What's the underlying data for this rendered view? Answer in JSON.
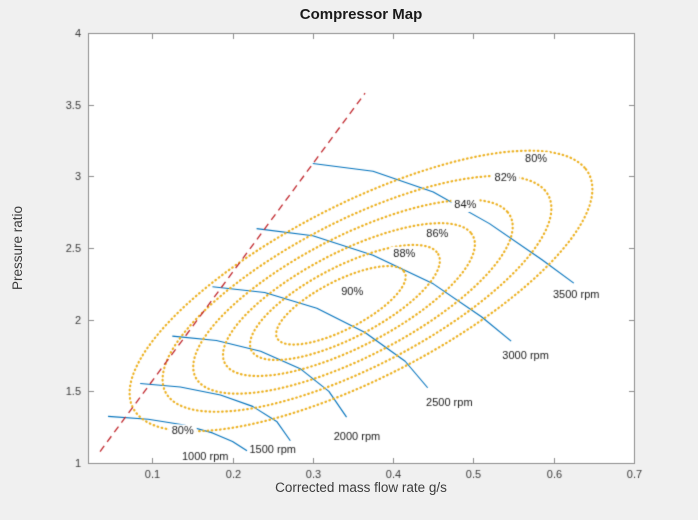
{
  "figure": {
    "title": "Compressor Map",
    "xlabel": "Corrected mass flow rate g/s",
    "ylabel": "Pressure ratio"
  },
  "chart_data": {
    "type": "line",
    "title": "Compressor Map",
    "xlabel": "Corrected mass flow rate g/s",
    "ylabel": "Pressure ratio",
    "xlim": [
      0.02,
      0.7
    ],
    "ylim": [
      1,
      4
    ],
    "xticks": [
      0.1,
      0.2,
      0.3,
      0.4,
      0.5,
      0.6,
      0.7
    ],
    "xtick_labels": [
      "0.1",
      "0.2",
      "0.3",
      "0.4",
      "0.5",
      "0.6",
      "0.7"
    ],
    "yticks": [
      1,
      1.5,
      2,
      2.5,
      3,
      3.5,
      4
    ],
    "ytick_labels": [
      "1",
      "1.5",
      "2",
      "2.5",
      "3",
      "3.5",
      "4"
    ],
    "grid": false,
    "legend": "none",
    "colors": {
      "figure_bg": "#f0f0f0",
      "plot_bg": "#ffffff",
      "box": "#8c8c8c",
      "tick_label": "#3c3c3c",
      "speed_line": "#0072BD",
      "efficiency_contour": "#EDB120",
      "surge_line": "#C1272D",
      "annotation_text": "#1a1a1a"
    },
    "surge_line": {
      "style": "dashed",
      "points": [
        [
          0.035,
          1.08
        ],
        [
          0.365,
          3.58
        ]
      ]
    },
    "speed_lines": {
      "style": "solid",
      "series": [
        {
          "label": "1000 rpm",
          "label_pos": [
            0.166,
            1.045
          ],
          "points": [
            [
              0.045,
              1.325
            ],
            [
              0.095,
              1.305
            ],
            [
              0.14,
              1.265
            ],
            [
              0.175,
              1.21
            ],
            [
              0.2,
              1.15
            ],
            [
              0.218,
              1.085
            ]
          ]
        },
        {
          "label": "1500 rpm",
          "label_pos": [
            0.25,
            1.09
          ],
          "points": [
            [
              0.085,
              1.555
            ],
            [
              0.135,
              1.53
            ],
            [
              0.185,
              1.475
            ],
            [
              0.225,
              1.395
            ],
            [
              0.255,
              1.29
            ],
            [
              0.272,
              1.155
            ]
          ]
        },
        {
          "label": "2000 rpm",
          "label_pos": [
            0.355,
            1.18
          ],
          "points": [
            [
              0.125,
              1.885
            ],
            [
              0.18,
              1.855
            ],
            [
              0.235,
              1.78
            ],
            [
              0.285,
              1.655
            ],
            [
              0.32,
              1.5
            ],
            [
              0.342,
              1.32
            ]
          ]
        },
        {
          "label": "2500 rpm",
          "label_pos": [
            0.47,
            1.42
          ],
          "points": [
            [
              0.175,
              2.23
            ],
            [
              0.24,
              2.19
            ],
            [
              0.305,
              2.08
            ],
            [
              0.365,
              1.91
            ],
            [
              0.415,
              1.71
            ],
            [
              0.443,
              1.525
            ]
          ]
        },
        {
          "label": "3000 rpm",
          "label_pos": [
            0.565,
            1.75
          ],
          "points": [
            [
              0.23,
              2.635
            ],
            [
              0.3,
              2.585
            ],
            [
              0.375,
              2.45
            ],
            [
              0.45,
              2.25
            ],
            [
              0.51,
              2.02
            ],
            [
              0.547,
              1.85
            ]
          ]
        },
        {
          "label": "3500 rpm",
          "label_pos": [
            0.628,
            2.17
          ],
          "points": [
            [
              0.3,
              3.09
            ],
            [
              0.375,
              3.035
            ],
            [
              0.45,
              2.89
            ],
            [
              0.52,
              2.67
            ],
            [
              0.585,
              2.42
            ],
            [
              0.625,
              2.255
            ]
          ]
        }
      ]
    },
    "efficiency_contours": {
      "style": "dotted",
      "angle_deg": 35,
      "levels": [
        80,
        82,
        84,
        86,
        88,
        90
      ],
      "rings": [
        {
          "level": 80,
          "label": "80%",
          "center": [
            0.36,
            2.2
          ],
          "a": 0.5,
          "b": 0.19,
          "label_positions": [
            [
              0.578,
              3.12
            ],
            [
              0.138,
              1.22
            ]
          ]
        },
        {
          "level": 82,
          "label": "82%",
          "center": [
            0.355,
            2.18
          ],
          "a": 0.42,
          "b": 0.16,
          "label_positions": [
            [
              0.54,
              2.99
            ]
          ]
        },
        {
          "level": 84,
          "label": "84%",
          "center": [
            0.35,
            2.16
          ],
          "a": 0.345,
          "b": 0.132,
          "label_positions": [
            [
              0.49,
              2.8
            ]
          ]
        },
        {
          "level": 86,
          "label": "86%",
          "center": [
            0.345,
            2.14
          ],
          "a": 0.272,
          "b": 0.104,
          "label_positions": [
            [
              0.455,
              2.6
            ]
          ]
        },
        {
          "level": 88,
          "label": "88%",
          "center": [
            0.34,
            2.12
          ],
          "a": 0.205,
          "b": 0.078,
          "label_positions": [
            [
              0.414,
              2.46
            ]
          ]
        },
        {
          "level": 90,
          "label": "90%",
          "center": [
            0.335,
            2.1
          ],
          "a": 0.14,
          "b": 0.053,
          "label_positions": [
            [
              0.349,
              2.19
            ]
          ]
        }
      ]
    }
  }
}
